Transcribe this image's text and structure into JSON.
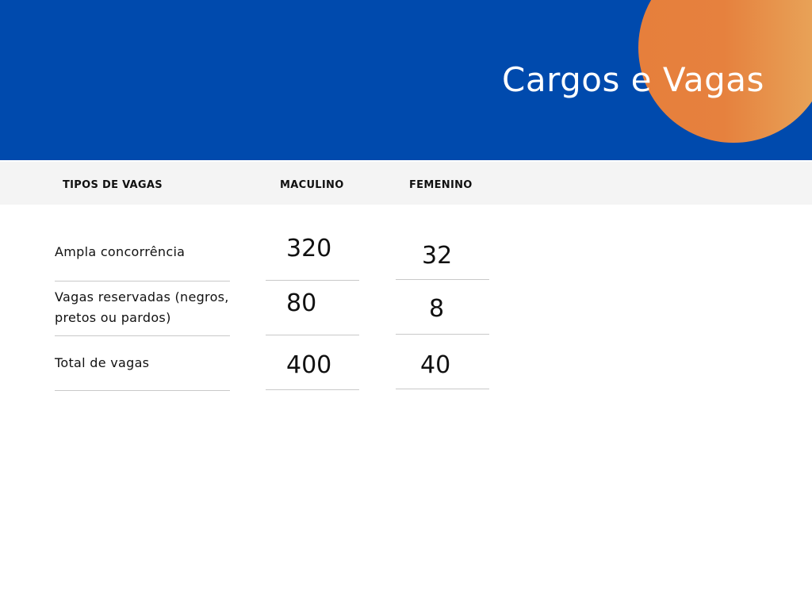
{
  "header": {
    "title": "Cargos e Vagas",
    "colors": {
      "background": "#004aad",
      "accent_circle": "#e67f3c"
    }
  },
  "table": {
    "columns": [
      "TIPOS DE VAGAS",
      "MACULINO",
      "FEMENINO"
    ],
    "rows": [
      {
        "type": "Ampla concorrência",
        "masculino": "320",
        "feminino": "32"
      },
      {
        "type": "Vagas reservadas (negros, pretos ou pardos)",
        "masculino": "80",
        "feminino": "8"
      },
      {
        "type": "Total de vagas",
        "masculino": "400",
        "feminino": "40"
      }
    ]
  }
}
